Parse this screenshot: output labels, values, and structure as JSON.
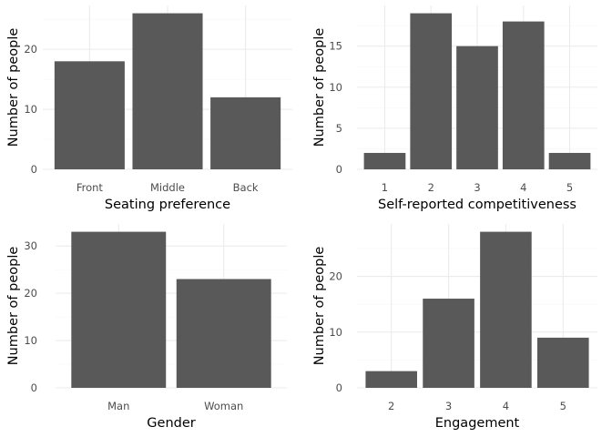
{
  "figure": {
    "background": "#ffffff",
    "bar_color": "#595959",
    "grid_color": "#ebebeb"
  },
  "chart_data": [
    {
      "type": "bar",
      "xlabel": "Seating preference",
      "ylabel": "Number of people",
      "categories": [
        "Front",
        "Middle",
        "Back"
      ],
      "values": [
        18,
        26,
        12
      ],
      "ylim": [
        0,
        27.3
      ],
      "yticks": [
        0,
        10,
        20
      ],
      "grid": true
    },
    {
      "type": "bar",
      "xlabel": "Self-reported competitiveness",
      "ylabel": "Number of people",
      "categories": [
        "1",
        "2",
        "3",
        "4",
        "5"
      ],
      "values": [
        2,
        19,
        15,
        18,
        2
      ],
      "ylim": [
        0,
        19.95
      ],
      "yticks": [
        0,
        5,
        10,
        15
      ],
      "grid": true
    },
    {
      "type": "bar",
      "xlabel": "Gender",
      "ylabel": "Number of people",
      "categories": [
        "Man",
        "Woman"
      ],
      "values": [
        33,
        23
      ],
      "ylim": [
        0,
        34.65
      ],
      "yticks": [
        0,
        10,
        20,
        30
      ],
      "grid": true
    },
    {
      "type": "bar",
      "xlabel": "Engagement",
      "ylabel": "Number of people",
      "categories": [
        "2",
        "3",
        "4",
        "5"
      ],
      "values": [
        3,
        16,
        28,
        9
      ],
      "ylim": [
        0,
        29.4
      ],
      "yticks": [
        0,
        10,
        20
      ],
      "grid": true
    }
  ]
}
